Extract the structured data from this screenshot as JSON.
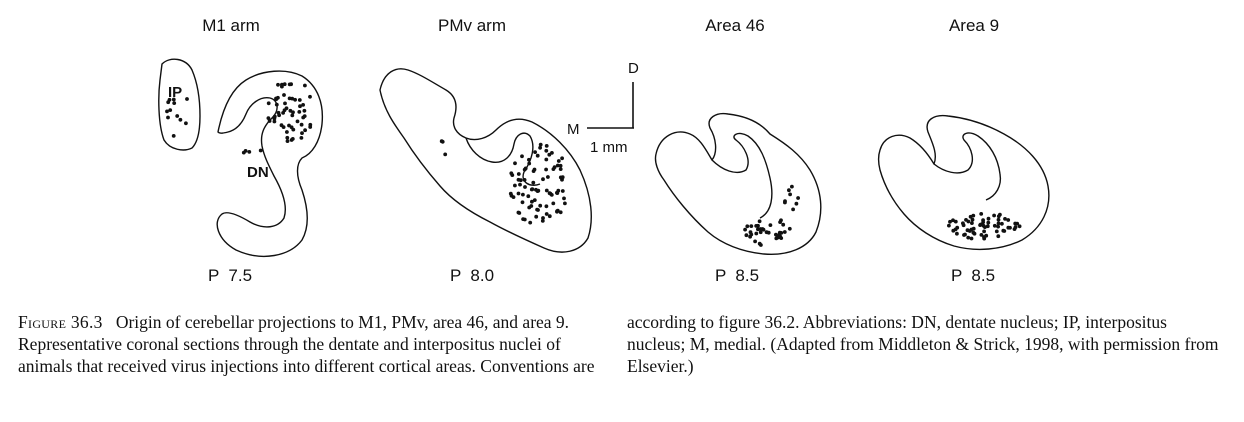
{
  "panels": [
    {
      "title": "M1 arm",
      "level": "P  7.5"
    },
    {
      "title": "PMv arm",
      "level": "P  8.0"
    },
    {
      "title": "Area 46",
      "level": "P  8.5"
    },
    {
      "title": "Area 9",
      "level": "P  8.5"
    }
  ],
  "region_labels": {
    "ip": "IP",
    "dn": "DN"
  },
  "scale": {
    "dorsal": "D",
    "medial": "M",
    "length": "1 mm"
  },
  "caption": {
    "figure_label": "Figure 36.3",
    "part1": "Origin of cerebellar projections to M1, PMv, area 46, and area 9. Representative coronal sections through the dentate and interpositus nuclei of animals that received virus injections into different cortical areas. Conventions are",
    "part2": "according to figure 36.2. Abbreviations: DN, dentate nucleus; IP, interpositus nucleus; M, medial. (Adapted from Middleton & Strick, 1998, with permission from Elsevier.)"
  }
}
